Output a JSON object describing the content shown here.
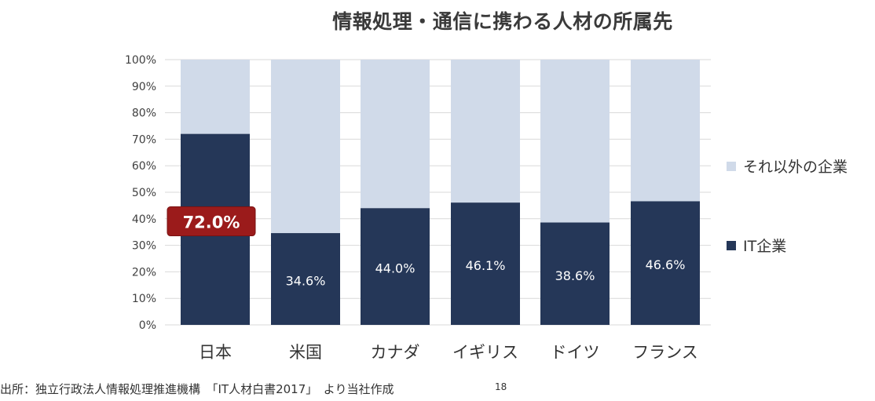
{
  "chart_data": {
    "type": "bar",
    "stacked": true,
    "title": "情報処理・通信に携わる人材の所属先",
    "categories": [
      "日本",
      "米国",
      "カナダ",
      "イギリス",
      "ドイツ",
      "フランス"
    ],
    "series": [
      {
        "name": "IT企業",
        "values": [
          72.0,
          34.6,
          44.0,
          46.1,
          38.6,
          46.6
        ],
        "color": "#253758"
      },
      {
        "name": "それ以外の企業",
        "values": [
          28.0,
          65.4,
          56.0,
          53.9,
          61.4,
          53.4
        ],
        "color": "#d0dae9"
      }
    ],
    "data_labels": [
      "72.0%",
      "34.6%",
      "44.0%",
      "46.1%",
      "38.6%",
      "46.6%"
    ],
    "highlight": {
      "index": 0,
      "color": "#9b1b1b"
    },
    "y_ticks": [
      "0%",
      "10%",
      "20%",
      "30%",
      "40%",
      "50%",
      "60%",
      "70%",
      "80%",
      "90%",
      "100%"
    ],
    "ylim": [
      0,
      100
    ],
    "grid": true,
    "legend_position": "right"
  },
  "footer": {
    "source": "出所：独立行政法人情報処理推進機構　「IT人材白書2017」　より当社作成",
    "page_number": "18"
  }
}
